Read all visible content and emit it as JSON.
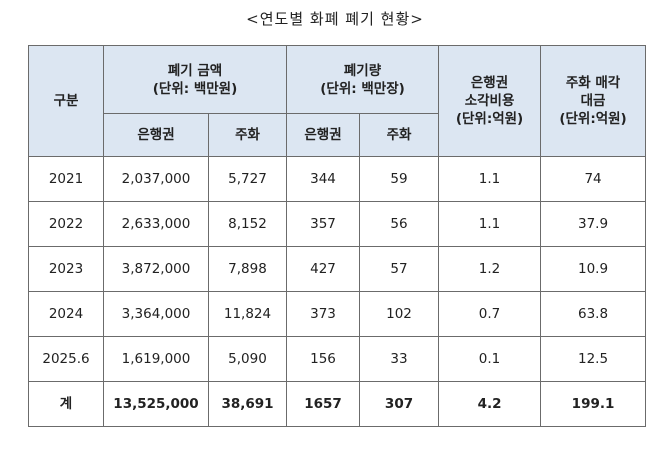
{
  "title": "<연도별 화폐 폐기 현황>",
  "header": {
    "category": "구분",
    "amount_group": [
      "폐기 금액",
      "(단위: 백만원)"
    ],
    "volume_group": [
      "폐기량",
      "(단위: 백만장)"
    ],
    "note_cost": [
      "은행권",
      "소각비용",
      "(단위:억원)"
    ],
    "coin_sale": [
      "주화 매각",
      "대금",
      "(단위:억원)"
    ],
    "banknote": "은행권",
    "coin": "주화"
  },
  "rows": [
    {
      "year": "2021",
      "amount_note": "2,037,000",
      "amount_coin": "5,727",
      "vol_note": "344",
      "vol_coin": "59",
      "burn_cost": "1.1",
      "coin_sale": "74"
    },
    {
      "year": "2022",
      "amount_note": "2,633,000",
      "amount_coin": "8,152",
      "vol_note": "357",
      "vol_coin": "56",
      "burn_cost": "1.1",
      "coin_sale": "37.9"
    },
    {
      "year": "2023",
      "amount_note": "3,872,000",
      "amount_coin": "7,898",
      "vol_note": "427",
      "vol_coin": "57",
      "burn_cost": "1.2",
      "coin_sale": "10.9"
    },
    {
      "year": "2024",
      "amount_note": "3,364,000",
      "amount_coin": "11,824",
      "vol_note": "373",
      "vol_coin": "102",
      "burn_cost": "0.7",
      "coin_sale": "63.8"
    },
    {
      "year": "2025.6",
      "amount_note": "1,619,000",
      "amount_coin": "5,090",
      "vol_note": "156",
      "vol_coin": "33",
      "burn_cost": "0.1",
      "coin_sale": "12.5"
    }
  ],
  "total": {
    "label": "계",
    "amount_note": "13,525,000",
    "amount_coin": "38,691",
    "vol_note": "1657",
    "vol_coin": "307",
    "burn_cost": "4.2",
    "coin_sale": "199.1"
  }
}
